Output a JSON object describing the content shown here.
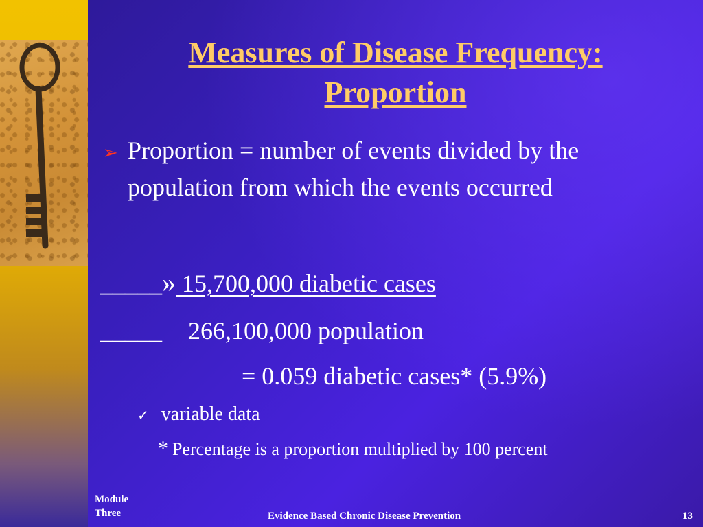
{
  "slide": {
    "title_line1": "Measures of Disease Frequency:",
    "title_line2": "Proportion",
    "bullet": "Proportion = number of events divided by the population from which the events occurred",
    "numerator_prefix": "_____",
    "numerator_marker": "»",
    "numerator_value": " 15,700,000 diabetic cases",
    "denominator_prefix": "_____",
    "denominator_value": "266,100,000 population",
    "result": "= 0.059 diabetic cases* (5.9%)",
    "check_item": "variable data",
    "footnote_marker": "*",
    "footnote": "Percentage is a proportion multiplied by 100 percent"
  },
  "footer": {
    "module_line1": "Module",
    "module_line2": "Three",
    "center": "Evidence Based Chronic Disease Prevention",
    "page_number": "13"
  },
  "colors": {
    "title": "#ffcc66",
    "bullet_marker": "#ff3322",
    "text": "#ffffff",
    "background": "#3a1fc0",
    "sidebar": "#f2c200"
  },
  "icons": {
    "bullet": "arrow-bullet-icon",
    "check": "check-icon",
    "image": "key-icon"
  }
}
